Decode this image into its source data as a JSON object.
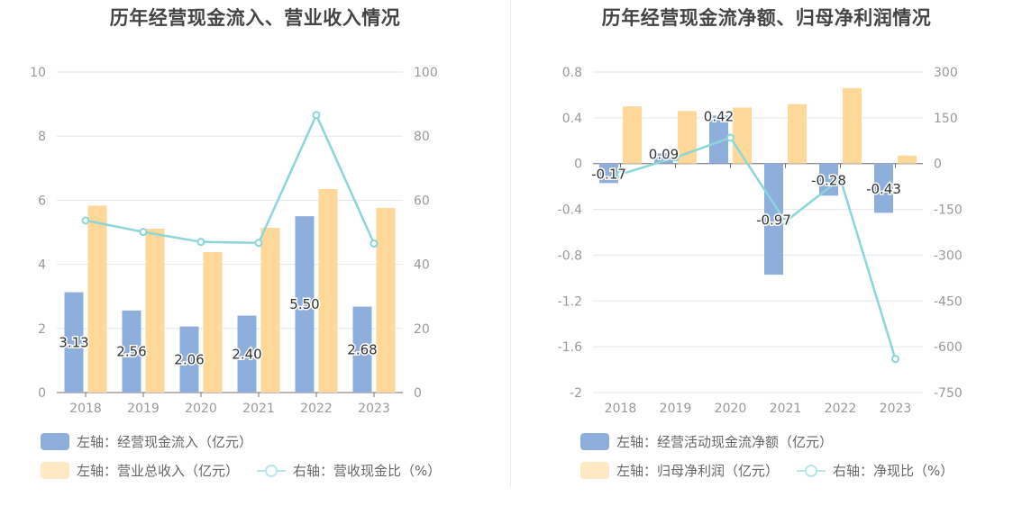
{
  "colors": {
    "bar_blue": "#8eaedc",
    "bar_orange": "#ffd89a",
    "line_teal": "#8ad6d9",
    "grid": "#e3e6f0",
    "axis_text": "#999999",
    "label_text": "#333333"
  },
  "left": {
    "title": "历年经营现金流入、营业收入情况",
    "legend": {
      "bar1": "左轴：经营现金流入（亿元）",
      "bar2": "左轴：营业总收入（亿元）",
      "line": "右轴：营收现金比（%）"
    }
  },
  "right": {
    "title": "历年经营现金流净额、归母净利润情况",
    "legend": {
      "bar1": "左轴：经营活动现金流净额（亿元）",
      "bar2": "左轴：归母净利润（亿元）",
      "line": "右轴：净现比（%）"
    }
  },
  "chart_data": [
    {
      "type": "bar",
      "title": "历年经营现金流入、营业收入情况",
      "categories": [
        "2018",
        "2019",
        "2020",
        "2021",
        "2022",
        "2023"
      ],
      "ylim_left": [
        0,
        10
      ],
      "yticks_left": [
        "0",
        "2",
        "4",
        "6",
        "8",
        "10"
      ],
      "ylim_right": [
        0,
        100
      ],
      "yticks_right": [
        "0",
        "20",
        "40",
        "60",
        "80",
        "100"
      ],
      "series": [
        {
          "name": "左轴：经营现金流入（亿元）",
          "kind": "bar",
          "axis": "left",
          "color": "#8eaedc",
          "values": [
            3.13,
            2.56,
            2.06,
            2.4,
            5.5,
            2.68
          ],
          "labels": [
            "3.13",
            "2.56",
            "2.06",
            "2.40",
            "5.50",
            "2.68"
          ]
        },
        {
          "name": "左轴：营业总收入（亿元）",
          "kind": "bar",
          "axis": "left",
          "color": "#ffd89a",
          "values": [
            5.83,
            5.11,
            4.38,
            5.14,
            6.35,
            5.76
          ]
        },
        {
          "name": "右轴：营收现金比（%）",
          "kind": "line",
          "axis": "right",
          "color": "#8ad6d9",
          "values": [
            53.7,
            50.1,
            47.0,
            46.7,
            86.6,
            46.5
          ]
        }
      ],
      "grid": true,
      "legend_position": "bottom"
    },
    {
      "type": "bar",
      "title": "历年经营现金流净额、归母净利润情况",
      "categories": [
        "2018",
        "2019",
        "2020",
        "2021",
        "2022",
        "2023"
      ],
      "ylim_left": [
        -2,
        0.8
      ],
      "yticks_left": [
        "-2",
        "-1.6",
        "-1.2",
        "-0.8",
        "-0.4",
        "0",
        "0.4",
        "0.8"
      ],
      "ylim_right": [
        -750,
        300
      ],
      "yticks_right": [
        "-750",
        "-600",
        "-450",
        "-300",
        "-150",
        "0",
        "150",
        "300"
      ],
      "series": [
        {
          "name": "左轴：经营活动现金流净额（亿元）",
          "kind": "bar",
          "axis": "left",
          "color": "#8eaedc",
          "values": [
            -0.17,
            0.09,
            0.42,
            -0.97,
            -0.28,
            -0.43
          ],
          "labels": [
            "-0.17",
            "0.09",
            "0.42",
            "-0.97",
            "-0.28",
            "-0.43"
          ]
        },
        {
          "name": "左轴：归母净利润（亿元）",
          "kind": "bar",
          "axis": "left",
          "color": "#ffd89a",
          "values": [
            0.5,
            0.46,
            0.49,
            0.52,
            0.66,
            0.07
          ]
        },
        {
          "name": "右轴：净现比（%）",
          "kind": "line",
          "axis": "right",
          "color": "#8ad6d9",
          "values": [
            -35,
            20,
            85,
            -190,
            -50,
            -640
          ]
        }
      ],
      "grid": true,
      "legend_position": "bottom"
    }
  ]
}
